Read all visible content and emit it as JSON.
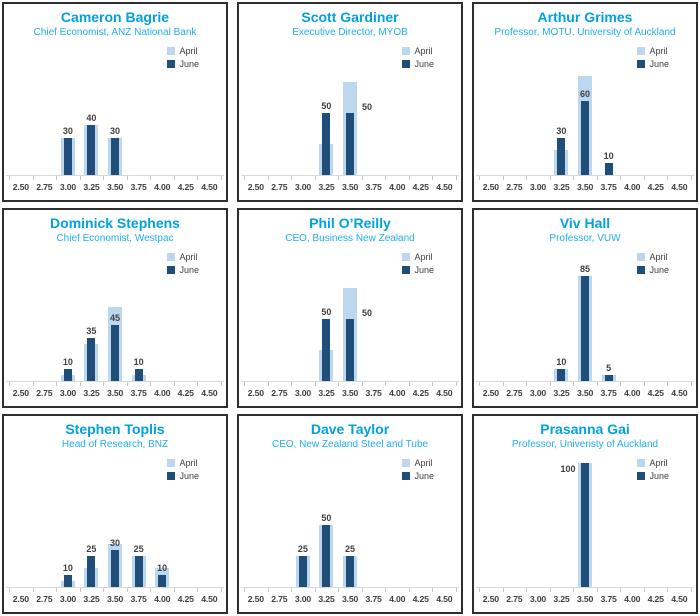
{
  "colors": {
    "april_bar": "#BDD7EE",
    "june_bar": "#1F4E79",
    "name_text": "#00A2E0",
    "role_text": "#1FB0EE",
    "label_text": "#404040",
    "axis_line": "#D9D9D9",
    "panel_border": "#2F2F2F"
  },
  "legend": {
    "items": [
      {
        "label": "April",
        "color": "#BDD7EE"
      },
      {
        "label": "June",
        "color": "#1F4E79"
      }
    ]
  },
  "categories": [
    "2.50",
    "2.75",
    "3.00",
    "3.25",
    "3.50",
    "3.75",
    "4.00",
    "4.25",
    "4.50"
  ],
  "chart_layout": {
    "grid": false,
    "legend_position": "top-right",
    "ylim": [
      0,
      105
    ],
    "value_labels_series": "June",
    "note": "April series drawn as wider light bars behind narrower dark June bars; only June values carry data labels"
  },
  "chart_data": [
    {
      "type": "bar",
      "title": "Cameron Bagrie",
      "subtitle": "Chief Economist, ANZ National Bank",
      "series": [
        {
          "name": "April",
          "values": [
            0,
            0,
            30,
            40,
            30,
            0,
            0,
            0,
            0
          ]
        },
        {
          "name": "June",
          "values": [
            0,
            0,
            30,
            40,
            30,
            0,
            0,
            0,
            0
          ]
        }
      ]
    },
    {
      "type": "bar",
      "title": "Scott Gardiner",
      "subtitle": "Executive Director, MYOB",
      "series": [
        {
          "name": "April",
          "values": [
            0,
            0,
            0,
            25,
            75,
            0,
            0,
            0,
            0
          ]
        },
        {
          "name": "June",
          "values": [
            0,
            0,
            0,
            50,
            50,
            0,
            0,
            0,
            0
          ]
        }
      ],
      "label_pos_overrides": {
        "4": "right"
      }
    },
    {
      "type": "bar",
      "title": "Arthur Grimes",
      "subtitle": "Professor, MOTU, University of Auckland",
      "series": [
        {
          "name": "April",
          "values": [
            0,
            0,
            0,
            20,
            80,
            0,
            0,
            0,
            0
          ]
        },
        {
          "name": "June",
          "values": [
            0,
            0,
            0,
            30,
            60,
            10,
            0,
            0,
            0
          ]
        }
      ]
    },
    {
      "type": "bar",
      "title": "Dominick Stephens",
      "subtitle": "Chief Economist, Westpac",
      "series": [
        {
          "name": "April",
          "values": [
            0,
            0,
            5,
            30,
            60,
            5,
            0,
            0,
            0
          ]
        },
        {
          "name": "June",
          "values": [
            0,
            0,
            10,
            35,
            45,
            10,
            0,
            0,
            0
          ]
        }
      ]
    },
    {
      "type": "bar",
      "title": "Phil O’Reilly",
      "subtitle": "CEO, Business New Zealand",
      "series": [
        {
          "name": "April",
          "values": [
            0,
            0,
            0,
            25,
            75,
            0,
            0,
            0,
            0
          ]
        },
        {
          "name": "June",
          "values": [
            0,
            0,
            0,
            50,
            50,
            0,
            0,
            0,
            0
          ]
        }
      ],
      "label_pos_overrides": {
        "4": "right"
      }
    },
    {
      "type": "bar",
      "title": "Viv Hall",
      "subtitle": "Professor, VUW",
      "series": [
        {
          "name": "April",
          "values": [
            0,
            0,
            0,
            10,
            85,
            5,
            0,
            0,
            0
          ]
        },
        {
          "name": "June",
          "values": [
            0,
            0,
            0,
            10,
            85,
            5,
            0,
            0,
            0
          ]
        }
      ]
    },
    {
      "type": "bar",
      "title": "Stephen Toplis",
      "subtitle": "Head of Research, BNZ",
      "series": [
        {
          "name": "April",
          "values": [
            0,
            0,
            5,
            15,
            35,
            25,
            15,
            0,
            0
          ]
        },
        {
          "name": "June",
          "values": [
            0,
            0,
            10,
            25,
            30,
            25,
            10,
            0,
            0
          ]
        }
      ]
    },
    {
      "type": "bar",
      "title": "Dave Taylor",
      "subtitle": "CEO, New Zealand Steel and Tube",
      "series": [
        {
          "name": "April",
          "values": [
            0,
            0,
            25,
            50,
            25,
            0,
            0,
            0,
            0
          ]
        },
        {
          "name": "June",
          "values": [
            0,
            0,
            25,
            50,
            25,
            0,
            0,
            0,
            0
          ]
        }
      ]
    },
    {
      "type": "bar",
      "title": "Prasanna Gai",
      "subtitle": "Professor, Univeristy of Auckland",
      "series": [
        {
          "name": "April",
          "values": [
            0,
            0,
            0,
            0,
            100,
            0,
            0,
            0,
            0
          ]
        },
        {
          "name": "June",
          "values": [
            0,
            0,
            0,
            0,
            100,
            0,
            0,
            0,
            0
          ]
        }
      ],
      "label_pos_overrides": {
        "4": "left"
      }
    }
  ]
}
